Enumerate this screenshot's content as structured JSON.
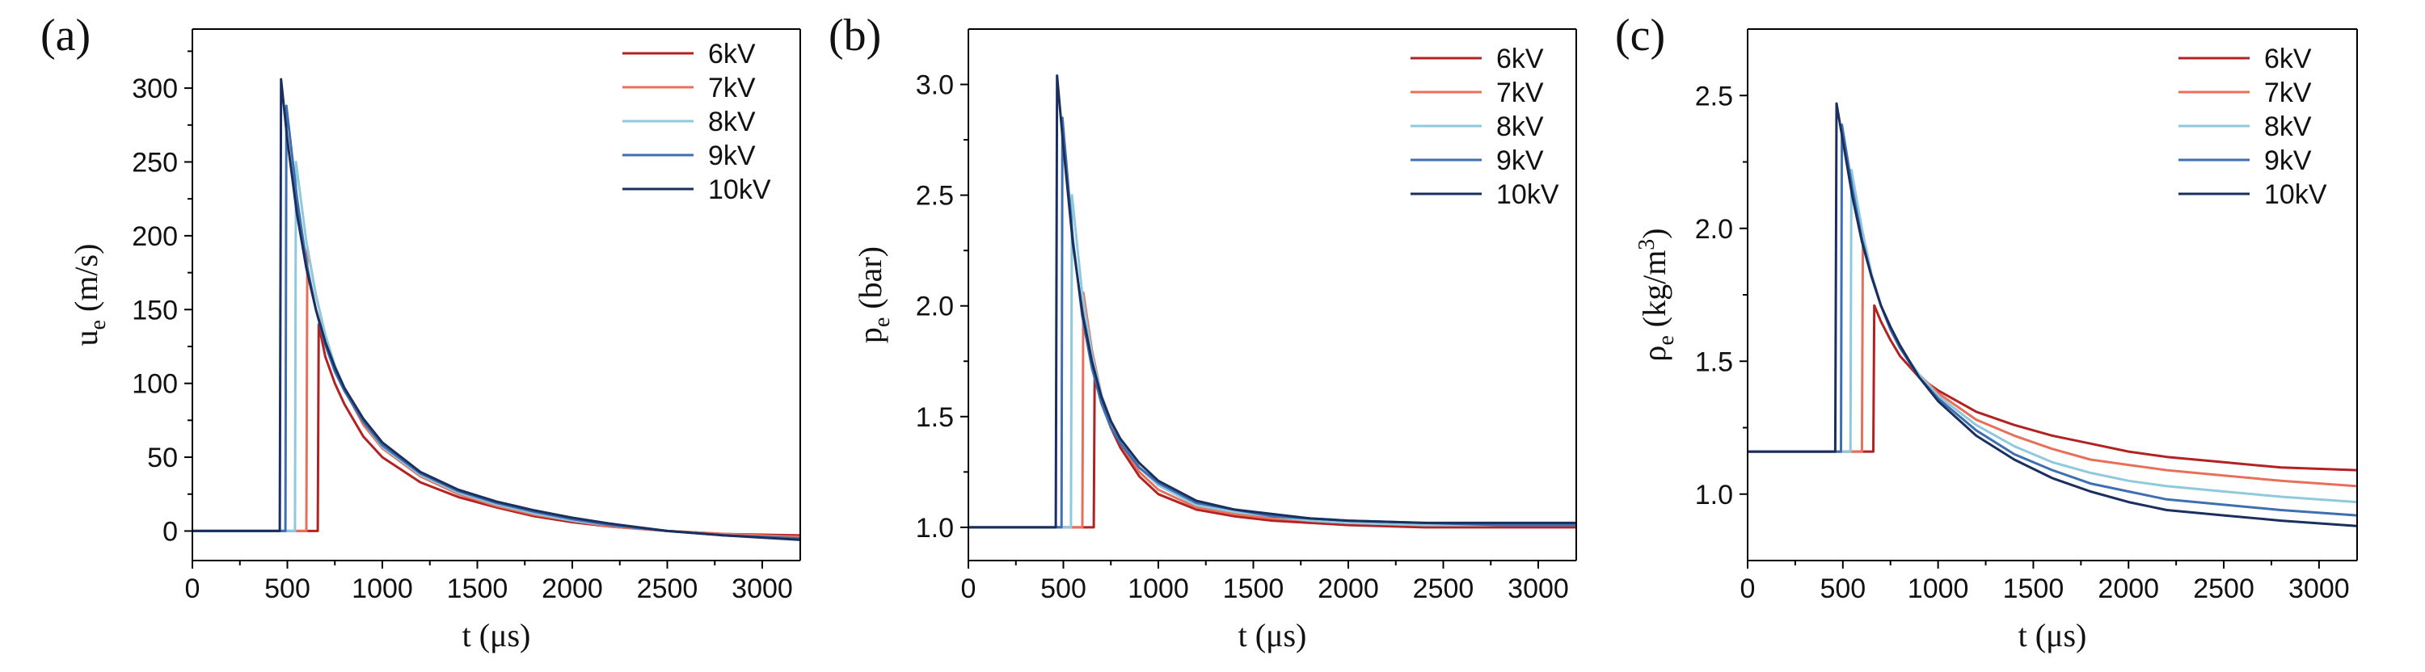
{
  "figure": {
    "description_free": true,
    "line_colors": [
      "#b22222",
      "#e8705a",
      "#8ec9de",
      "#3d6fb2",
      "#1b2f5e"
    ]
  },
  "chart_data": [
    {
      "panel_label": "(a)",
      "type": "line",
      "xlabel": "t (μs)",
      "ylabel_main": "u",
      "ylabel_sub": "e",
      "ylabel_rest": " (m/s)",
      "xlim": [
        0,
        3200
      ],
      "ylim": [
        -20,
        340
      ],
      "xticks": [
        0,
        500,
        1000,
        1500,
        2000,
        2500,
        3000
      ],
      "yticks": [
        0,
        50,
        100,
        150,
        200,
        250,
        300
      ],
      "ytick_labels": [
        "0",
        "50",
        "100",
        "150",
        "200",
        "250",
        "300"
      ],
      "series": [
        {
          "name": "6kV",
          "color": "#b22222",
          "x": [
            0,
            660,
            665,
            700,
            750,
            800,
            900,
            1000,
            1200,
            1400,
            1600,
            1800,
            2000,
            2200,
            2500,
            2800,
            3200
          ],
          "y": [
            0,
            0,
            140,
            118,
            100,
            86,
            64,
            50,
            33,
            23,
            16,
            10,
            6,
            3,
            0,
            -2,
            -3
          ]
        },
        {
          "name": "7kV",
          "color": "#e8705a",
          "x": [
            0,
            600,
            605,
            650,
            700,
            750,
            800,
            900,
            1000,
            1200,
            1400,
            1600,
            1800,
            2000,
            2200,
            2500,
            2800,
            3200
          ],
          "y": [
            0,
            0,
            192,
            160,
            132,
            112,
            96,
            72,
            56,
            37,
            25,
            17,
            11,
            7,
            3,
            0,
            -2,
            -4
          ]
        },
        {
          "name": "8kV",
          "color": "#8ec9de",
          "x": [
            0,
            540,
            545,
            600,
            650,
            700,
            750,
            800,
            900,
            1000,
            1200,
            1400,
            1600,
            1800,
            2000,
            2200,
            2500,
            2800,
            3200
          ],
          "y": [
            0,
            0,
            250,
            196,
            160,
            133,
            112,
            97,
            74,
            57,
            38,
            26,
            18,
            12,
            7,
            4,
            0,
            -3,
            -5
          ]
        },
        {
          "name": "9kV",
          "color": "#3d6fb2",
          "x": [
            0,
            490,
            495,
            550,
            600,
            650,
            700,
            750,
            800,
            900,
            1000,
            1200,
            1400,
            1600,
            1800,
            2000,
            2200,
            2500,
            2800,
            3200
          ],
          "y": [
            0,
            0,
            288,
            226,
            182,
            150,
            126,
            108,
            95,
            74,
            58,
            39,
            27,
            19,
            13,
            8,
            4,
            0,
            -3,
            -5
          ]
        },
        {
          "name": "10kV",
          "color": "#1b2f5e",
          "x": [
            0,
            460,
            467,
            500,
            550,
            600,
            650,
            700,
            750,
            800,
            900,
            1000,
            1200,
            1400,
            1600,
            1800,
            2000,
            2200,
            2500,
            2800,
            3200
          ],
          "y": [
            0,
            0,
            306,
            265,
            215,
            178,
            150,
            128,
            111,
            97,
            76,
            60,
            40,
            28,
            20,
            14,
            9,
            5,
            0,
            -3,
            -6
          ]
        }
      ]
    },
    {
      "panel_label": "(b)",
      "type": "line",
      "xlabel": "t (μs)",
      "ylabel_main": "p",
      "ylabel_sub": "e",
      "ylabel_rest": " (bar)",
      "xlim": [
        0,
        3200
      ],
      "ylim": [
        0.85,
        3.25
      ],
      "xticks": [
        0,
        500,
        1000,
        1500,
        2000,
        2500,
        3000
      ],
      "yticks": [
        1.0,
        1.5,
        2.0,
        2.5,
        3.0
      ],
      "ytick_labels": [
        "1.0",
        "1.5",
        "2.0",
        "2.5",
        "3.0"
      ],
      "series": [
        {
          "name": "6kV",
          "color": "#b22222",
          "x": [
            0,
            660,
            665,
            700,
            750,
            800,
            900,
            1000,
            1200,
            1400,
            1600,
            1800,
            2000,
            2400,
            2800,
            3200
          ],
          "y": [
            1.0,
            1.0,
            1.72,
            1.58,
            1.45,
            1.36,
            1.23,
            1.15,
            1.08,
            1.05,
            1.03,
            1.02,
            1.01,
            1.0,
            1.0,
            1.0
          ]
        },
        {
          "name": "7kV",
          "color": "#e8705a",
          "x": [
            0,
            600,
            605,
            650,
            700,
            750,
            800,
            900,
            1000,
            1200,
            1400,
            1600,
            1800,
            2000,
            2400,
            2800,
            3200
          ],
          "y": [
            1.0,
            1.0,
            2.06,
            1.8,
            1.6,
            1.47,
            1.38,
            1.25,
            1.17,
            1.09,
            1.06,
            1.04,
            1.03,
            1.02,
            1.01,
            1.01,
            1.01
          ]
        },
        {
          "name": "8kV",
          "color": "#8ec9de",
          "x": [
            0,
            540,
            545,
            600,
            650,
            700,
            750,
            800,
            900,
            1000,
            1200,
            1400,
            1600,
            1800,
            2000,
            2400,
            2800,
            3200
          ],
          "y": [
            1.0,
            1.0,
            2.5,
            2.05,
            1.78,
            1.6,
            1.48,
            1.4,
            1.27,
            1.19,
            1.1,
            1.07,
            1.05,
            1.03,
            1.02,
            1.01,
            1.01,
            1.01
          ]
        },
        {
          "name": "9kV",
          "color": "#3d6fb2",
          "x": [
            0,
            490,
            495,
            550,
            600,
            650,
            700,
            750,
            800,
            900,
            1000,
            1200,
            1400,
            1600,
            1800,
            2000,
            2400,
            2800,
            3200
          ],
          "y": [
            1.0,
            1.0,
            2.85,
            2.3,
            1.95,
            1.72,
            1.56,
            1.45,
            1.38,
            1.27,
            1.2,
            1.11,
            1.08,
            1.05,
            1.04,
            1.03,
            1.02,
            1.01,
            1.01
          ]
        },
        {
          "name": "10kV",
          "color": "#1b2f5e",
          "x": [
            0,
            460,
            467,
            500,
            550,
            600,
            650,
            700,
            750,
            800,
            900,
            1000,
            1200,
            1400,
            1600,
            1800,
            2000,
            2400,
            2800,
            3200
          ],
          "y": [
            1.0,
            1.0,
            3.04,
            2.72,
            2.28,
            1.97,
            1.75,
            1.59,
            1.48,
            1.4,
            1.29,
            1.21,
            1.12,
            1.08,
            1.06,
            1.04,
            1.03,
            1.02,
            1.02,
            1.02
          ]
        }
      ]
    },
    {
      "panel_label": "(c)",
      "type": "line",
      "xlabel": "t (μs)",
      "ylabel_main": "ρ",
      "ylabel_sub": "e",
      "ylabel_rest": " (kg/m",
      "ylabel_sup": "3",
      "ylabel_end": ")",
      "xlim": [
        0,
        3200
      ],
      "ylim": [
        0.75,
        2.75
      ],
      "xticks": [
        0,
        500,
        1000,
        1500,
        2000,
        2500,
        3000
      ],
      "yticks": [
        1.0,
        1.5,
        2.0,
        2.5
      ],
      "ytick_labels": [
        "1.0",
        "1.5",
        "2.0",
        "2.5"
      ],
      "series": [
        {
          "name": "6kV",
          "color": "#b22222",
          "x": [
            0,
            660,
            665,
            700,
            750,
            800,
            900,
            1000,
            1200,
            1400,
            1600,
            1800,
            2000,
            2200,
            2500,
            2800,
            3200
          ],
          "y": [
            1.16,
            1.16,
            1.71,
            1.65,
            1.58,
            1.52,
            1.44,
            1.39,
            1.31,
            1.26,
            1.22,
            1.19,
            1.16,
            1.14,
            1.12,
            1.1,
            1.09
          ]
        },
        {
          "name": "7kV",
          "color": "#e8705a",
          "x": [
            0,
            600,
            605,
            650,
            700,
            750,
            800,
            900,
            1000,
            1200,
            1400,
            1600,
            1800,
            2000,
            2200,
            2500,
            2800,
            3200
          ],
          "y": [
            1.16,
            1.16,
            1.95,
            1.82,
            1.71,
            1.62,
            1.55,
            1.45,
            1.38,
            1.28,
            1.22,
            1.17,
            1.13,
            1.11,
            1.09,
            1.07,
            1.05,
            1.03
          ]
        },
        {
          "name": "8kV",
          "color": "#8ec9de",
          "x": [
            0,
            540,
            545,
            600,
            650,
            700,
            750,
            800,
            900,
            1000,
            1200,
            1400,
            1600,
            1800,
            2000,
            2200,
            2500,
            2800,
            3200
          ],
          "y": [
            1.16,
            1.16,
            2.22,
            2.0,
            1.83,
            1.71,
            1.62,
            1.55,
            1.45,
            1.37,
            1.26,
            1.18,
            1.12,
            1.08,
            1.05,
            1.03,
            1.01,
            0.99,
            0.97
          ]
        },
        {
          "name": "9kV",
          "color": "#3d6fb2",
          "x": [
            0,
            490,
            495,
            550,
            600,
            650,
            700,
            750,
            800,
            900,
            1000,
            1200,
            1400,
            1600,
            1800,
            2000,
            2200,
            2500,
            2800,
            3200
          ],
          "y": [
            1.16,
            1.16,
            2.39,
            2.15,
            1.96,
            1.82,
            1.71,
            1.62,
            1.55,
            1.44,
            1.36,
            1.24,
            1.15,
            1.09,
            1.04,
            1.01,
            0.98,
            0.96,
            0.94,
            0.92
          ]
        },
        {
          "name": "10kV",
          "color": "#1b2f5e",
          "x": [
            0,
            460,
            467,
            500,
            550,
            600,
            650,
            700,
            750,
            800,
            900,
            1000,
            1200,
            1400,
            1600,
            1800,
            2000,
            2200,
            2500,
            2800,
            3200
          ],
          "y": [
            1.16,
            1.16,
            2.47,
            2.33,
            2.12,
            1.95,
            1.82,
            1.71,
            1.63,
            1.56,
            1.44,
            1.35,
            1.22,
            1.13,
            1.06,
            1.01,
            0.97,
            0.94,
            0.92,
            0.9,
            0.88
          ]
        }
      ]
    }
  ]
}
